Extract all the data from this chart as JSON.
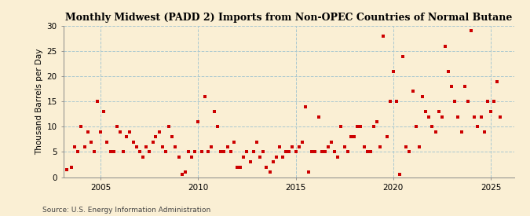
{
  "title": "Monthly Midwest (PADD 2) Imports from Non-OPEC Countries of Normal Butane",
  "ylabel": "Thousand Barrels per Day",
  "source": "Source: U.S. Energy Information Administration",
  "background_color": "#faefd4",
  "plot_bg_color": "#faefd4",
  "dot_color": "#cc0000",
  "dot_size": 6,
  "xlim": [
    2003.1,
    2026.2
  ],
  "ylim": [
    0,
    30
  ],
  "yticks": [
    0,
    5,
    10,
    15,
    20,
    25,
    30
  ],
  "xticks": [
    2005,
    2010,
    2015,
    2020,
    2025
  ],
  "grid_color": "#aac8d0",
  "grid_linestyle": "--",
  "grid_linewidth": 0.7,
  "data": {
    "x": [
      2003.25,
      2003.5,
      2003.67,
      2003.83,
      2004.0,
      2004.17,
      2004.33,
      2004.5,
      2004.67,
      2004.83,
      2005.0,
      2005.17,
      2005.33,
      2005.5,
      2005.67,
      2005.83,
      2006.0,
      2006.17,
      2006.33,
      2006.5,
      2006.67,
      2006.83,
      2007.0,
      2007.17,
      2007.33,
      2007.5,
      2007.67,
      2007.83,
      2008.0,
      2008.17,
      2008.33,
      2008.5,
      2008.67,
      2008.83,
      2009.0,
      2009.17,
      2009.33,
      2009.5,
      2009.67,
      2009.83,
      2010.0,
      2010.17,
      2010.33,
      2010.5,
      2010.67,
      2010.83,
      2011.0,
      2011.17,
      2011.33,
      2011.5,
      2011.67,
      2011.83,
      2012.0,
      2012.17,
      2012.33,
      2012.5,
      2012.67,
      2012.83,
      2013.0,
      2013.17,
      2013.33,
      2013.5,
      2013.67,
      2013.83,
      2014.0,
      2014.17,
      2014.33,
      2014.5,
      2014.67,
      2014.83,
      2015.0,
      2015.17,
      2015.33,
      2015.5,
      2015.67,
      2015.83,
      2016.0,
      2016.17,
      2016.33,
      2016.5,
      2016.67,
      2016.83,
      2017.0,
      2017.17,
      2017.33,
      2017.5,
      2017.67,
      2017.83,
      2018.0,
      2018.17,
      2018.33,
      2018.5,
      2018.67,
      2018.83,
      2019.0,
      2019.17,
      2019.33,
      2019.5,
      2019.67,
      2019.83,
      2020.0,
      2020.17,
      2020.33,
      2020.5,
      2020.67,
      2020.83,
      2021.0,
      2021.17,
      2021.33,
      2021.5,
      2021.67,
      2021.83,
      2022.0,
      2022.17,
      2022.33,
      2022.5,
      2022.67,
      2022.83,
      2023.0,
      2023.17,
      2023.33,
      2023.5,
      2023.67,
      2023.83,
      2024.0,
      2024.17,
      2024.33,
      2024.5,
      2024.67,
      2024.83,
      2025.0,
      2025.17,
      2025.33,
      2025.5
    ],
    "y": [
      1.5,
      2,
      6,
      5,
      10,
      6,
      9,
      7,
      5,
      15,
      9,
      13,
      7,
      5,
      5,
      10,
      9,
      5,
      8,
      9,
      7,
      6,
      5,
      4,
      6,
      5,
      7,
      8,
      9,
      6,
      5,
      10,
      8,
      6,
      4,
      0.5,
      1,
      5,
      4,
      5,
      11,
      5,
      16,
      5,
      6,
      13,
      10,
      5,
      5,
      6,
      5,
      7,
      2,
      2,
      4,
      5,
      3,
      5,
      7,
      4,
      5,
      2,
      1,
      3,
      4,
      6,
      4,
      5,
      5,
      6,
      5,
      6,
      7,
      14,
      1,
      5,
      5,
      12,
      5,
      5,
      6,
      7,
      5,
      4,
      10,
      6,
      5,
      8,
      8,
      10,
      10,
      6,
      5,
      5,
      10,
      11,
      6,
      28,
      8,
      15,
      21,
      15,
      0.5,
      24,
      6,
      5,
      17,
      10,
      6,
      16,
      13,
      12,
      10,
      9,
      13,
      12,
      26,
      21,
      18,
      15,
      12,
      9,
      18,
      15,
      29,
      12,
      10,
      12,
      9,
      15,
      13,
      15,
      19,
      12
    ]
  }
}
